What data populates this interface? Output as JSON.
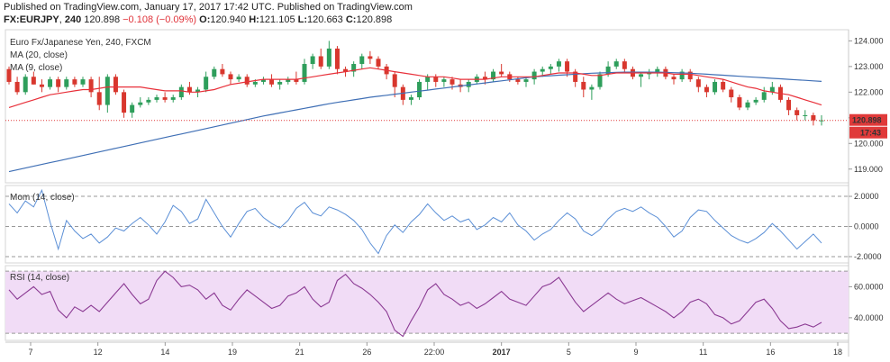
{
  "header": {
    "published": "Published on TradingView.com, January 17, 2017 17:42 UTC. Published on TradingView.com",
    "symbol": "FX:EURJPY",
    "interval": "240",
    "last": "120.898",
    "change": "−0.108 (−0.09%)",
    "open_key": "O:",
    "open": "120.940",
    "high_key": "H:",
    "high": "121.105",
    "low_key": "L:",
    "low": "120.663",
    "close_key": "C:",
    "close": "120.898"
  },
  "colors": {
    "up": "#2e9e5b",
    "down": "#d8372e",
    "ma20": "#e8303a",
    "ma9": "#3f6fb5",
    "mom": "#5b8fd6",
    "rsi": "#8b3a93",
    "rsi_band": "#f1dcf6",
    "axis_tag": "#e03a3a"
  },
  "chart_data": [
    {
      "type": "candlestick",
      "legend": [
        "Euro Fx/Japanese Yen, 240, FXCM",
        "MA (20, close)",
        "MA (9, close)"
      ],
      "y_ticks": [
        "124.000",
        "123.000",
        "122.000",
        "121.000",
        "120.000",
        "119.000"
      ],
      "ylim": [
        118.5,
        124.4
      ],
      "last_price_label": "120.898",
      "countdown_label": "17:43",
      "ohlc": [
        [
          122.9,
          123.0,
          122.3,
          122.4
        ],
        [
          122.4,
          122.6,
          121.9,
          122.0
        ],
        [
          122.0,
          122.7,
          121.9,
          122.6
        ],
        [
          122.6,
          122.8,
          122.3,
          122.3
        ],
        [
          122.3,
          122.5,
          122.0,
          122.2
        ],
        [
          122.2,
          122.6,
          122.1,
          122.5
        ],
        [
          122.5,
          122.6,
          122.0,
          122.2
        ],
        [
          122.2,
          122.6,
          122.1,
          122.5
        ],
        [
          122.5,
          122.6,
          122.2,
          122.3
        ],
        [
          122.3,
          122.6,
          122.2,
          122.5
        ],
        [
          122.5,
          122.6,
          121.8,
          122.0
        ],
        [
          122.0,
          122.6,
          121.3,
          121.5
        ],
        [
          121.5,
          122.7,
          121.2,
          122.6
        ],
        [
          122.6,
          122.7,
          121.9,
          122.0
        ],
        [
          122.0,
          122.1,
          121.0,
          121.2
        ],
        [
          121.2,
          121.6,
          121.0,
          121.5
        ],
        [
          121.5,
          121.8,
          121.4,
          121.6
        ],
        [
          121.6,
          121.8,
          121.5,
          121.7
        ],
        [
          121.7,
          121.9,
          121.6,
          121.8
        ],
        [
          121.8,
          122.0,
          121.6,
          121.7
        ],
        [
          121.7,
          121.9,
          121.6,
          121.8
        ],
        [
          121.8,
          122.3,
          121.7,
          122.2
        ],
        [
          122.2,
          122.4,
          121.9,
          122.0
        ],
        [
          122.0,
          122.2,
          121.8,
          122.1
        ],
        [
          122.1,
          122.8,
          122.0,
          122.6
        ],
        [
          122.6,
          123.0,
          122.5,
          122.9
        ],
        [
          122.9,
          123.1,
          122.6,
          122.7
        ],
        [
          122.7,
          122.8,
          122.3,
          122.5
        ],
        [
          122.5,
          122.7,
          122.4,
          122.6
        ],
        [
          122.6,
          122.7,
          122.2,
          122.3
        ],
        [
          122.3,
          122.5,
          122.2,
          122.4
        ],
        [
          122.4,
          122.6,
          122.3,
          122.5
        ],
        [
          122.5,
          122.7,
          122.2,
          122.3
        ],
        [
          122.3,
          122.5,
          122.1,
          122.4
        ],
        [
          122.4,
          122.6,
          122.3,
          122.5
        ],
        [
          122.5,
          122.8,
          122.3,
          122.4
        ],
        [
          122.4,
          123.3,
          122.3,
          123.1
        ],
        [
          123.1,
          123.5,
          122.9,
          123.4
        ],
        [
          123.4,
          123.7,
          122.9,
          123.0
        ],
        [
          123.0,
          124.0,
          122.9,
          123.7
        ],
        [
          123.7,
          123.8,
          122.7,
          122.9
        ],
        [
          122.9,
          123.0,
          122.6,
          122.8
        ],
        [
          122.8,
          123.2,
          122.6,
          123.1
        ],
        [
          123.1,
          123.5,
          122.9,
          123.4
        ],
        [
          123.4,
          123.6,
          123.1,
          123.3
        ],
        [
          123.3,
          123.4,
          122.9,
          123.0
        ],
        [
          123.0,
          123.1,
          122.5,
          122.7
        ],
        [
          122.7,
          122.8,
          121.8,
          122.2
        ],
        [
          122.2,
          122.3,
          121.5,
          121.7
        ],
        [
          121.7,
          121.9,
          121.5,
          121.8
        ],
        [
          121.8,
          122.5,
          121.7,
          122.4
        ],
        [
          122.4,
          122.7,
          122.1,
          122.6
        ],
        [
          122.6,
          122.7,
          122.2,
          122.4
        ],
        [
          122.4,
          122.6,
          122.2,
          122.5
        ],
        [
          122.5,
          122.6,
          122.1,
          122.3
        ],
        [
          122.3,
          122.5,
          122.0,
          122.2
        ],
        [
          122.2,
          122.5,
          122.0,
          122.4
        ],
        [
          122.4,
          122.7,
          122.3,
          122.6
        ],
        [
          122.6,
          122.8,
          122.3,
          122.5
        ],
        [
          122.5,
          122.9,
          122.4,
          122.8
        ],
        [
          122.8,
          123.1,
          122.6,
          122.7
        ],
        [
          122.7,
          122.8,
          122.4,
          122.5
        ],
        [
          122.5,
          122.6,
          122.3,
          122.4
        ],
        [
          122.4,
          122.6,
          122.2,
          122.5
        ],
        [
          122.5,
          122.9,
          122.3,
          122.8
        ],
        [
          122.8,
          123.0,
          122.6,
          122.9
        ],
        [
          122.9,
          123.1,
          122.7,
          123.0
        ],
        [
          123.0,
          123.3,
          122.8,
          123.2
        ],
        [
          123.2,
          123.3,
          122.6,
          122.8
        ],
        [
          122.8,
          122.9,
          122.2,
          122.4
        ],
        [
          122.4,
          122.6,
          121.8,
          122.1
        ],
        [
          122.1,
          122.3,
          121.7,
          122.2
        ],
        [
          122.2,
          122.8,
          122.1,
          122.7
        ],
        [
          122.7,
          123.2,
          122.6,
          123.0
        ],
        [
          123.0,
          123.3,
          122.9,
          123.2
        ],
        [
          123.2,
          123.3,
          122.8,
          122.9
        ],
        [
          122.9,
          123.0,
          122.5,
          122.6
        ],
        [
          122.6,
          122.8,
          122.2,
          122.7
        ],
        [
          122.7,
          122.9,
          122.5,
          122.8
        ],
        [
          122.8,
          123.0,
          122.6,
          122.9
        ],
        [
          122.9,
          123.0,
          122.5,
          122.6
        ],
        [
          122.6,
          122.7,
          122.3,
          122.5
        ],
        [
          122.5,
          122.9,
          122.4,
          122.8
        ],
        [
          122.8,
          122.9,
          122.4,
          122.5
        ],
        [
          122.5,
          122.6,
          122.0,
          122.2
        ],
        [
          122.2,
          122.3,
          121.8,
          122.0
        ],
        [
          122.0,
          122.5,
          121.9,
          122.4
        ],
        [
          122.4,
          122.5,
          122.0,
          122.1
        ],
        [
          122.1,
          122.2,
          121.6,
          121.8
        ],
        [
          121.8,
          121.9,
          121.3,
          121.4
        ],
        [
          121.4,
          121.7,
          121.3,
          121.6
        ],
        [
          121.6,
          121.8,
          121.5,
          121.7
        ],
        [
          121.7,
          122.2,
          121.6,
          122.0
        ],
        [
          122.0,
          122.4,
          121.9,
          122.2
        ],
        [
          122.2,
          122.3,
          121.6,
          121.7
        ],
        [
          121.7,
          121.8,
          121.1,
          121.3
        ],
        [
          121.3,
          121.4,
          120.9,
          121.1
        ],
        [
          121.1,
          121.3,
          120.9,
          121.1
        ],
        [
          121.1,
          121.2,
          120.7,
          120.9
        ],
        [
          120.9,
          121.1,
          120.7,
          120.9
        ]
      ],
      "ma20": [
        121.4,
        121.5,
        121.6,
        121.7,
        121.8,
        121.9,
        121.95,
        122.0,
        122.05,
        122.1,
        122.1,
        122.15,
        122.2,
        122.2,
        122.2,
        122.2,
        122.2,
        122.15,
        122.1,
        122.05,
        122.05,
        122.05,
        122.0,
        122.0,
        122.05,
        122.1,
        122.2,
        122.3,
        122.35,
        122.4,
        122.45,
        122.5,
        122.5,
        122.5,
        122.5,
        122.5,
        122.55,
        122.6,
        122.65,
        122.7,
        122.75,
        122.8,
        122.85,
        122.9,
        122.95,
        122.9,
        122.85,
        122.8,
        122.75,
        122.7,
        122.65,
        122.6,
        122.6,
        122.6,
        122.55,
        122.5,
        122.5,
        122.5,
        122.5,
        122.55,
        122.6,
        122.6,
        122.6,
        122.6,
        122.6,
        122.65,
        122.7,
        122.75,
        122.75,
        122.75,
        122.7,
        122.65,
        122.65,
        122.7,
        122.75,
        122.75,
        122.75,
        122.75,
        122.75,
        122.75,
        122.75,
        122.7,
        122.7,
        122.7,
        122.65,
        122.6,
        122.55,
        122.5,
        122.4,
        122.3,
        122.2,
        122.15,
        122.05,
        122.0,
        121.95,
        121.9,
        121.8,
        121.7,
        121.6,
        121.5
      ],
      "ma9": [
        118.9,
        118.97,
        119.04,
        119.11,
        119.18,
        119.25,
        119.32,
        119.39,
        119.46,
        119.53,
        119.6,
        119.67,
        119.74,
        119.81,
        119.88,
        119.95,
        120.02,
        120.09,
        120.16,
        120.23,
        120.3,
        120.37,
        120.44,
        120.51,
        120.58,
        120.65,
        120.72,
        120.79,
        120.86,
        120.93,
        121.0,
        121.07,
        121.13,
        121.19,
        121.25,
        121.31,
        121.37,
        121.43,
        121.49,
        121.55,
        121.6,
        121.65,
        121.7,
        121.75,
        121.8,
        121.84,
        121.88,
        121.92,
        121.96,
        122.0,
        122.04,
        122.08,
        122.12,
        122.16,
        122.2,
        122.24,
        122.28,
        122.32,
        122.36,
        122.4,
        122.44,
        122.48,
        122.52,
        122.56,
        122.6,
        122.62,
        122.64,
        122.66,
        122.68,
        122.7,
        122.72,
        122.74,
        122.75,
        122.76,
        122.77,
        122.78,
        122.78,
        122.78,
        122.78,
        122.78,
        122.77,
        122.76,
        122.75,
        122.74,
        122.72,
        122.7,
        122.68,
        122.66,
        122.64,
        122.62,
        122.6,
        122.58,
        122.56,
        122.54,
        122.52,
        122.5,
        122.48,
        122.46,
        122.44,
        122.42
      ]
    },
    {
      "type": "line",
      "legend": "Mom (14, close)",
      "y_ticks": [
        "2.0000",
        "0.0000",
        "-2.0000"
      ],
      "ylim": [
        -2.3,
        2.6
      ],
      "values": [
        1.5,
        0.9,
        1.7,
        1.3,
        2.4,
        0.3,
        -1.5,
        0.4,
        -0.3,
        -0.8,
        -0.5,
        -1.1,
        -0.7,
        -0.1,
        -0.3,
        0.2,
        0.6,
        0.1,
        -0.5,
        0.3,
        1.4,
        1.0,
        0.2,
        0.5,
        1.8,
        0.9,
        0.0,
        -0.7,
        0.2,
        1.0,
        1.2,
        0.6,
        0.2,
        -0.1,
        0.4,
        1.2,
        1.6,
        0.9,
        0.7,
        1.3,
        1.1,
        0.8,
        0.4,
        -0.2,
        -1.1,
        -1.8,
        -0.6,
        0.1,
        -0.4,
        0.3,
        0.8,
        1.5,
        0.9,
        0.4,
        0.7,
        0.3,
        0.5,
        -0.2,
        0.1,
        0.6,
        0.3,
        0.9,
        0.1,
        -0.3,
        -0.9,
        -0.5,
        -0.2,
        0.4,
        0.9,
        0.5,
        -0.3,
        -0.6,
        -0.2,
        0.5,
        1.0,
        1.2,
        1.0,
        1.3,
        0.9,
        0.6,
        0.0,
        -0.7,
        -0.3,
        0.6,
        1.1,
        1.0,
        0.4,
        -0.1,
        -0.6,
        -0.9,
        -1.1,
        -0.8,
        -0.4,
        0.2,
        -0.3,
        -0.9,
        -1.5,
        -1.0,
        -0.5,
        -1.1
      ]
    },
    {
      "type": "line",
      "legend": "RSI (14, close)",
      "y_ticks": [
        "60.0000",
        "40.0000"
      ],
      "ylim": [
        26,
        73
      ],
      "band": [
        30,
        70
      ],
      "values": [
        58,
        52,
        56,
        60,
        55,
        57,
        45,
        40,
        47,
        44,
        48,
        44,
        50,
        56,
        62,
        55,
        49,
        52,
        64,
        70,
        66,
        60,
        61,
        58,
        52,
        56,
        48,
        45,
        52,
        58,
        54,
        50,
        46,
        48,
        54,
        56,
        60,
        52,
        47,
        50,
        64,
        68,
        62,
        59,
        55,
        50,
        44,
        32,
        28,
        38,
        47,
        58,
        62,
        55,
        52,
        48,
        50,
        46,
        49,
        53,
        57,
        52,
        50,
        48,
        54,
        60,
        62,
        66,
        58,
        50,
        44,
        48,
        52,
        56,
        52,
        49,
        51,
        53,
        50,
        47,
        44,
        40,
        44,
        50,
        52,
        49,
        42,
        40,
        36,
        38,
        44,
        50,
        52,
        46,
        38,
        33,
        34,
        36,
        34,
        37
      ]
    }
  ],
  "x_axis": {
    "labels": [
      "7",
      "12",
      "14",
      "19",
      "21",
      "26",
      "22:00",
      "2017",
      "5",
      "9",
      "11",
      "16",
      "18"
    ],
    "bold_label": "2017"
  }
}
